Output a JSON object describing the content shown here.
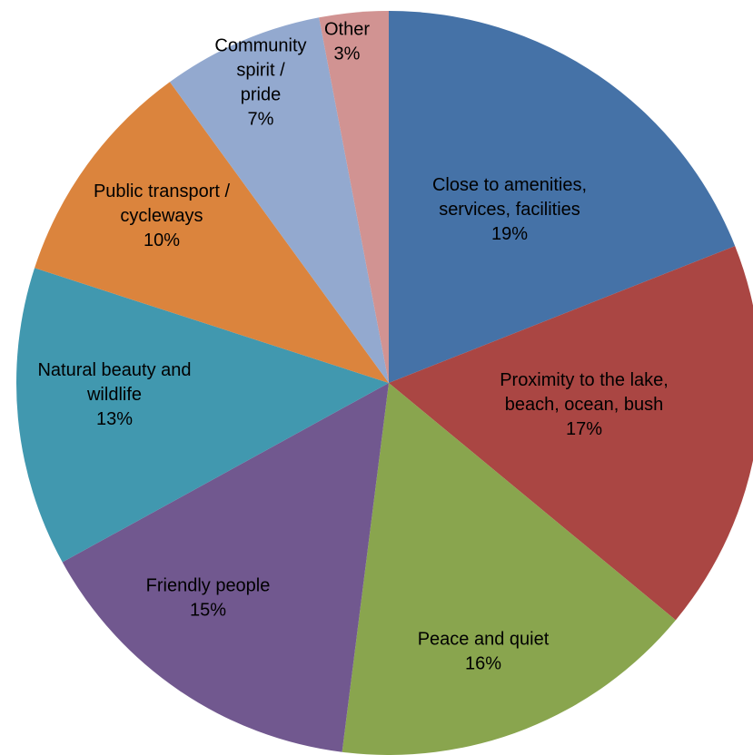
{
  "chart_data": {
    "type": "pie",
    "title": "",
    "start_angle_deg": 0,
    "direction": "clockwise",
    "slices": [
      {
        "name": "Close to amenities, services, facilities",
        "label_lines": [
          "Close to amenities,",
          "services, facilities"
        ],
        "percent_label": "19%",
        "value": 19,
        "color": "#4572A7"
      },
      {
        "name": "Proximity to the lake, beach, ocean, bush",
        "label_lines": [
          "Proximity to the lake,",
          "beach, ocean, bush"
        ],
        "percent_label": "17%",
        "value": 17,
        "color": "#AA4643"
      },
      {
        "name": "Peace and quiet",
        "label_lines": [
          "Peace and quiet"
        ],
        "percent_label": "16%",
        "value": 16,
        "color": "#89A54E"
      },
      {
        "name": "Friendly people",
        "label_lines": [
          "Friendly people"
        ],
        "percent_label": "15%",
        "value": 15,
        "color": "#71588F"
      },
      {
        "name": "Natural beauty and wildlife",
        "label_lines": [
          "Natural beauty and",
          "wildlife"
        ],
        "percent_label": "13%",
        "value": 13,
        "color": "#4198AF"
      },
      {
        "name": "Public transport / cycleways",
        "label_lines": [
          "Public transport /",
          "cycleways"
        ],
        "percent_label": "10%",
        "value": 10,
        "color": "#DB843D"
      },
      {
        "name": "Community spirit / pride",
        "label_lines": [
          "Community",
          "spirit /",
          "pride"
        ],
        "percent_label": "7%",
        "value": 7,
        "color": "#93A9CF"
      },
      {
        "name": "Other",
        "label_lines": [
          "Other"
        ],
        "percent_label": "3%",
        "value": 3,
        "color": "#D19392"
      }
    ]
  }
}
